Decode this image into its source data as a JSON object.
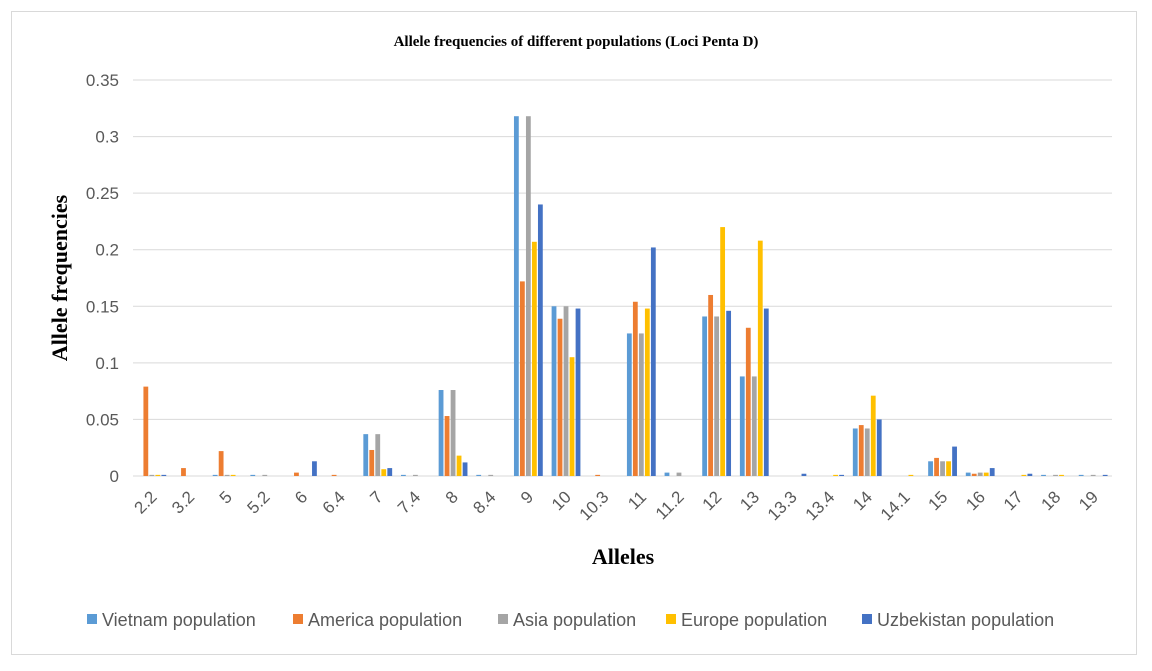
{
  "chart_data": {
    "type": "bar",
    "title": "Allele frequencies  of different  populations (Loci Penta D)",
    "xlabel": "Alleles",
    "ylabel": "Allele frequencies",
    "ylim": [
      0,
      0.35
    ],
    "yticks": [
      "0",
      "0.05",
      "0.1",
      "0.15",
      "0.2",
      "0.25",
      "0.3",
      "0.35"
    ],
    "grid": true,
    "legend_position": "bottom",
    "categories": [
      "2.2",
      "3.2",
      "5",
      "5.2",
      "6",
      "6.4",
      "7",
      "7.4",
      "8",
      "8.4",
      "9",
      "10",
      "10.3",
      "11",
      "11.2",
      "12",
      "13",
      "13.3",
      "13.4",
      "14",
      "14.1",
      "15",
      "16",
      "17",
      "18",
      "19"
    ],
    "series": [
      {
        "name": "Vietnam population",
        "color": "#5b9bd5",
        "values": [
          0,
          0,
          0.001,
          0.001,
          0,
          0,
          0.037,
          0.001,
          0.076,
          0.001,
          0.318,
          0.15,
          0,
          0.126,
          0.003,
          0.141,
          0.088,
          0,
          0,
          0.042,
          0,
          0.013,
          0.003,
          0,
          0.001,
          0.001
        ]
      },
      {
        "name": "America population",
        "color": "#ed7d31",
        "values": [
          0.079,
          0.007,
          0.022,
          0,
          0.003,
          0.001,
          0.023,
          0,
          0.053,
          0,
          0.172,
          0.139,
          0.001,
          0.154,
          0,
          0.16,
          0.131,
          0,
          0,
          0.045,
          0,
          0.016,
          0.002,
          0,
          0,
          0
        ]
      },
      {
        "name": "Asia population",
        "color": "#a5a5a5",
        "values": [
          0.001,
          0,
          0.001,
          0.001,
          0,
          0,
          0.037,
          0.001,
          0.076,
          0.001,
          0.318,
          0.15,
          0,
          0.126,
          0.003,
          0.141,
          0.088,
          0,
          0,
          0.042,
          0,
          0.013,
          0.003,
          0,
          0.001,
          0.001
        ]
      },
      {
        "name": "Europe population",
        "color": "#ffc000",
        "values": [
          0.001,
          0,
          0.001,
          0,
          0,
          0,
          0.006,
          0,
          0.018,
          0,
          0.207,
          0.105,
          0,
          0.148,
          0,
          0.22,
          0.208,
          0,
          0.001,
          0.071,
          0.001,
          0.013,
          0.003,
          0.001,
          0.001,
          0
        ]
      },
      {
        "name": "Uzbekistan population",
        "color": "#4472c4",
        "values": [
          0.001,
          0,
          0,
          0,
          0.013,
          0,
          0.007,
          0,
          0.012,
          0,
          0.24,
          0.148,
          0,
          0.202,
          0,
          0.146,
          0.148,
          0.002,
          0.001,
          0.05,
          0,
          0.026,
          0.007,
          0.002,
          0,
          0.001
        ]
      }
    ]
  }
}
